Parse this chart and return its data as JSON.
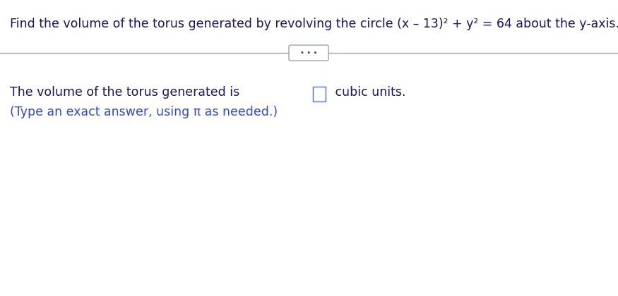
{
  "full_title": "Find the volume of the torus generated by revolving the circle (x – 13)² + y² = 64 about the y-axis.",
  "line1_pre": "The volume of the torus generated is ",
  "line1_post": " cubic units.",
  "line2": "(Type an exact answer, using π as needed.)",
  "title_color": "#1b1464",
  "body_color": "#1b1464",
  "hint_color": "#2e4bce",
  "bg_color": "#ffffff",
  "separator_color": "#8a9bb0",
  "dots_text": "• • •",
  "title_fontsize": 12.5,
  "body_fontsize": 12.5,
  "hint_fontsize": 12.5,
  "dots_fontsize": 7.5,
  "box_edge_color": "#4472c4",
  "dots_color": "#444444"
}
